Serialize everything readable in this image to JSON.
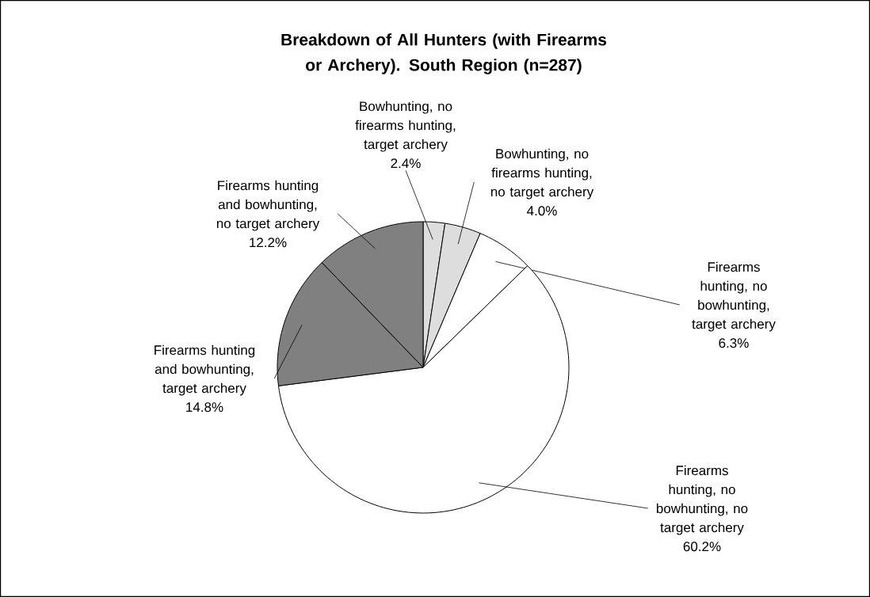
{
  "chart_data": {
    "type": "pie",
    "title": "Breakdown of All Hunters (with Firearms or Archery). South Region (n=287)",
    "categories": [
      "Bowhunting, no firearms hunting, target archery",
      "Bowhunting, no firearms hunting, no target archery",
      "Firearms hunting, no bowhunting, target archery",
      "Firearms hunting, no bowhunting, no target archery",
      "Firearms hunting and bowhunting, target archery",
      "Firearms hunting and bowhunting, no target archery"
    ],
    "values": [
      2.4,
      4.0,
      6.3,
      60.2,
      14.8,
      12.2
    ],
    "colors": [
      "#dddddd",
      "#dddddd",
      "#ffffff",
      "#ffffff",
      "#808080",
      "#808080"
    ],
    "value_labels": [
      "2.4%",
      "4.0%",
      "6.3%",
      "60.2%",
      "14.8%",
      "12.2%"
    ]
  }
}
